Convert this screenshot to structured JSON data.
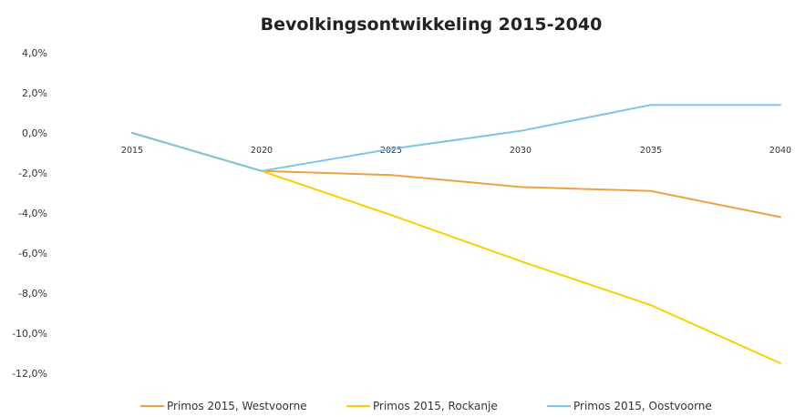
{
  "chart_data": {
    "type": "line",
    "title": "Bevolkingsontwikkeling 2015-2040",
    "xlabel": "",
    "ylabel": "",
    "x": [
      "2015",
      "2020",
      "2025",
      "2030",
      "2035",
      "2040"
    ],
    "ylim": [
      -12.0,
      4.0
    ],
    "yticks": [
      "4,0%",
      "2,0%",
      "0,0%",
      "-2,0%",
      "-4,0%",
      "-6,0%",
      "-8,0%",
      "-10,0%",
      "-12,0%"
    ],
    "ytick_values": [
      4,
      2,
      0,
      -2,
      -4,
      -6,
      -8,
      -10,
      -12
    ],
    "grid": false,
    "legend_position": "bottom",
    "series": [
      {
        "name": "Primos 2015, Westvoorne",
        "color": "#f0a040",
        "values": [
          0.0,
          -1.9,
          -2.1,
          -2.7,
          -2.9,
          -4.2
        ]
      },
      {
        "name": "Primos 2015, Rockanje",
        "color": "#f5d200",
        "values": [
          0.0,
          -1.9,
          -4.1,
          -6.4,
          -8.6,
          -11.5
        ]
      },
      {
        "name": "Primos 2015, Oostvoorne",
        "color": "#7cc4e8",
        "values": [
          0.0,
          -1.9,
          -0.8,
          0.1,
          1.4,
          1.4
        ]
      }
    ]
  }
}
